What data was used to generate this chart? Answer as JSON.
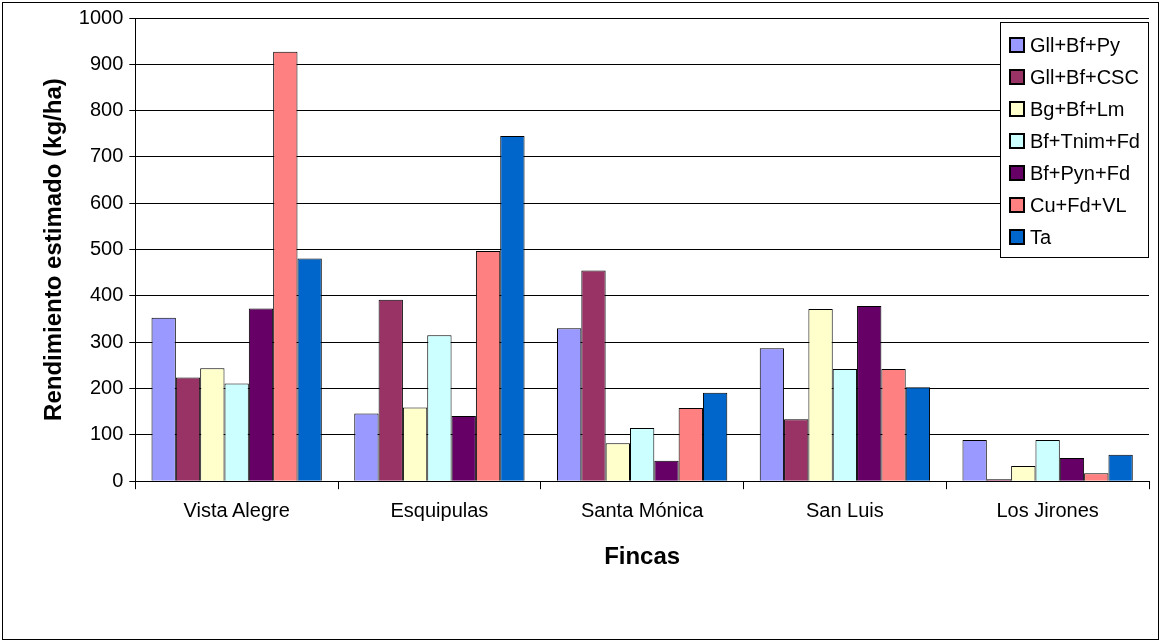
{
  "chart_data": {
    "type": "bar",
    "xlabel": "Fincas",
    "ylabel": "Rendimiento estimado (kg/ha)",
    "categories": [
      "Vista Alegre",
      "Esquipulas",
      "Santa Mónica",
      "San Luis",
      "Los Jirones"
    ],
    "series": [
      {
        "name": "Gll+Bf+Py",
        "color": "#9999ff",
        "values": [
          353,
          146,
          330,
          287,
          89
        ]
      },
      {
        "name": "Gll+Bf+CSC",
        "color": "#993366",
        "values": [
          224,
          392,
          455,
          134,
          4
        ]
      },
      {
        "name": "Bg+Bf+Lm",
        "color": "#ffffcc",
        "values": [
          244,
          159,
          82,
          372,
          33
        ]
      },
      {
        "name": "Bf+Tnim+Fd",
        "color": "#ccffff",
        "values": [
          211,
          315,
          115,
          242,
          89
        ]
      },
      {
        "name": "Bf+Pyn+Fd",
        "color": "#660066",
        "values": [
          373,
          141,
          44,
          378,
          50
        ]
      },
      {
        "name": "Cu+Fd+VL",
        "color": "#ff8080",
        "values": [
          927,
          497,
          158,
          242,
          17
        ]
      },
      {
        "name": "Ta",
        "color": "#0066cc",
        "values": [
          481,
          745,
          191,
          203,
          57
        ]
      }
    ],
    "ylim": [
      0,
      1000
    ],
    "yticks": [
      0,
      100,
      200,
      300,
      400,
      500,
      600,
      700,
      800,
      900,
      1000
    ],
    "grid": "y",
    "legend": "top right"
  }
}
